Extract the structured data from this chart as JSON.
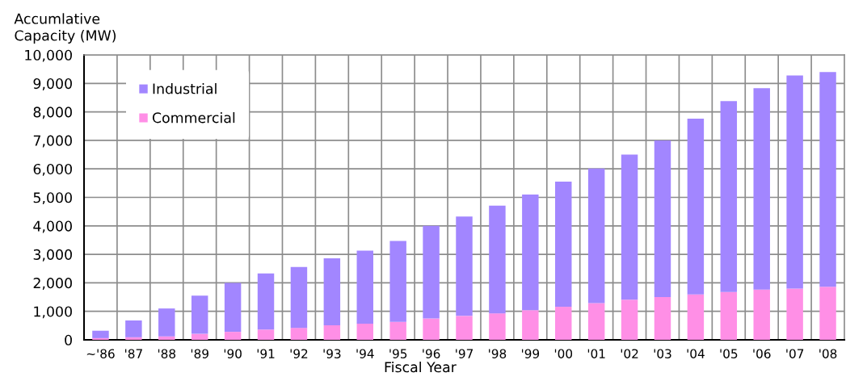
{
  "chart_data": {
    "type": "bar",
    "stacked": true,
    "xlabel": "Fiscal Year",
    "ylabel": "Accumlative\nCapacity (MW)",
    "categories": [
      "~'86",
      "'87",
      "'88",
      "'89",
      "'90",
      "'91",
      "'92",
      "'93",
      "'94",
      "'95",
      "'96",
      "'97",
      "'98",
      "'99",
      "'00",
      "'01",
      "'02",
      "'03",
      "'04",
      "'05",
      "'06",
      "'07",
      "'08"
    ],
    "series": [
      {
        "name": "Commercial",
        "color": "#ff8fe6",
        "values": [
          60,
          90,
          120,
          210,
          280,
          360,
          420,
          510,
          570,
          630,
          750,
          840,
          930,
          1040,
          1160,
          1290,
          1410,
          1500,
          1590,
          1680,
          1760,
          1800,
          1860
        ]
      },
      {
        "name": "Industrial",
        "color": "#a286ff",
        "values": [
          260,
          590,
          980,
          1340,
          1720,
          1970,
          2140,
          2350,
          2560,
          2840,
          3250,
          3490,
          3780,
          4060,
          4390,
          4720,
          5090,
          5500,
          6170,
          6700,
          7070,
          7480,
          7540
        ]
      }
    ],
    "ylim": [
      0,
      10000
    ],
    "yticks": [
      0,
      {
        "value": 1000,
        "label": "1,000"
      },
      {
        "value": 2000,
        "label": "2,000"
      },
      {
        "value": 3000,
        "label": "3,000"
      },
      {
        "value": 4000,
        "label": "4,000"
      },
      {
        "value": 5000,
        "label": "5,000"
      },
      {
        "value": 6000,
        "label": "6,000"
      },
      {
        "value": 7000,
        "label": "7,000"
      },
      {
        "value": 8000,
        "label": "8,000"
      },
      {
        "value": 9000,
        "label": "9,000"
      },
      {
        "value": 10000,
        "label": "10,000"
      }
    ],
    "grid": true,
    "legend": "top left"
  }
}
